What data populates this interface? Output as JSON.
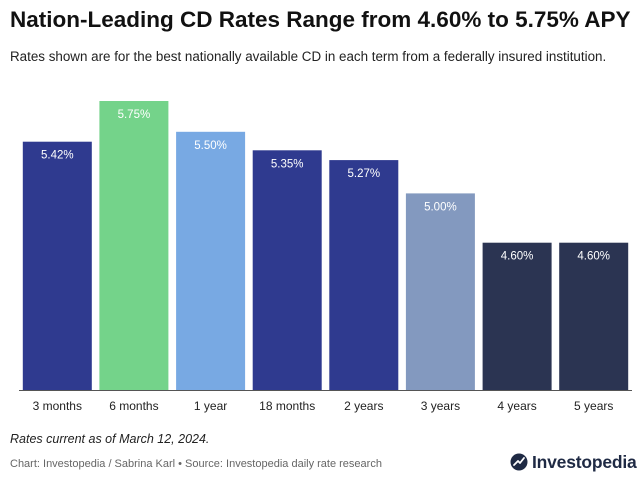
{
  "title": "Nation-Leading CD Rates Range from 4.60% to 5.75% APY",
  "subtitle": "Rates shown are for the best nationally available CD in each term from a federally insured institution.",
  "note": "Rates current as of March 12, 2024.",
  "source": "Chart: Investopedia / Sabrina Karl • Source: Investopedia daily rate research",
  "logo": {
    "text": "Investopedia",
    "icon": "investopedia-logo-icon"
  },
  "chart_data": {
    "type": "bar",
    "categories": [
      "3 months",
      "6 months",
      "1 year",
      "18 months",
      "2 years",
      "3 years",
      "4 years",
      "5 years"
    ],
    "values": [
      5.42,
      5.75,
      5.5,
      5.35,
      5.27,
      5.0,
      4.6,
      4.6
    ],
    "labels": [
      "5.42%",
      "5.75%",
      "5.50%",
      "5.35%",
      "5.27%",
      "5.00%",
      "4.60%",
      "4.60%"
    ],
    "colors": [
      "#2f3a8f",
      "#74d38a",
      "#78a9e3",
      "#2f3a8f",
      "#2f3a8f",
      "#8399bf",
      "#2b3452",
      "#2b3452"
    ],
    "ylim": [
      3.4,
      5.75
    ],
    "title": "Nation-Leading CD Rates Range from 4.60% to 5.75% APY",
    "xlabel": "",
    "ylabel": "",
    "grid": false,
    "legend": "none"
  }
}
